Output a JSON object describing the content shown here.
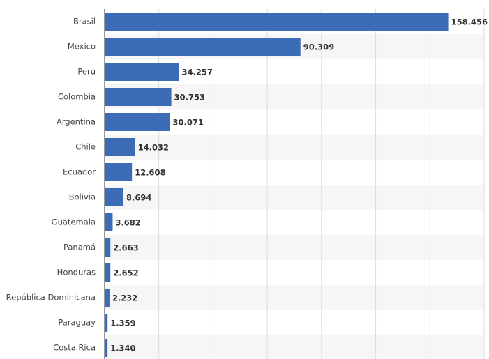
{
  "chart_data": {
    "type": "bar",
    "orientation": "horizontal",
    "categories": [
      "Brasil",
      "México",
      "Perú",
      "Colombia",
      "Argentina",
      "Chile",
      "Ecuador",
      "Bolivia",
      "Guatemala",
      "Panamá",
      "Honduras",
      "República Dominicana",
      "Paraguay",
      "Costa Rica"
    ],
    "values": [
      158456,
      90309,
      34257,
      30753,
      30071,
      14032,
      12608,
      8694,
      3682,
      2663,
      2652,
      2232,
      1359,
      1340
    ],
    "value_labels": [
      "158.456",
      "90.309",
      "34.257",
      "30.753",
      "30.071",
      "14.032",
      "12.608",
      "8.694",
      "3.682",
      "2.663",
      "2.652",
      "2.232",
      "1.359",
      "1.340"
    ],
    "color": "#3c6cb5",
    "xlim": [
      0,
      175000
    ],
    "xticks": [
      0,
      25000,
      50000,
      75000,
      100000,
      125000,
      150000,
      175000
    ],
    "grid": true
  }
}
